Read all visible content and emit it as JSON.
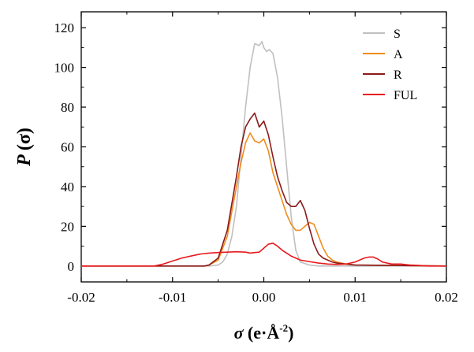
{
  "chart_data": {
    "type": "line",
    "xlabel_symbol": "σ",
    "xlabel_open": " (",
    "xlabel_unit": "e·Å",
    "xlabel_exp": "-2",
    "xlabel_close": ")",
    "ylabel_symbol": "P",
    "ylabel_arg": "(σ)",
    "xlim": [
      -0.02,
      0.02
    ],
    "ylim": [
      -8,
      128
    ],
    "xticks": [
      -0.02,
      -0.01,
      0.0,
      0.01,
      0.02
    ],
    "xtick_labels": [
      "-0.02",
      "-0.01",
      "0.00",
      "0.01",
      "0.02"
    ],
    "yticks": [
      0,
      20,
      40,
      60,
      80,
      100,
      120
    ],
    "ytick_labels": [
      "0",
      "20",
      "40",
      "60",
      "80",
      "100",
      "120"
    ],
    "grid": false,
    "legend_position": "top-right",
    "series": [
      {
        "name": "S",
        "color": "#c0c0c0",
        "x": [
          -0.02,
          -0.006,
          -0.005,
          -0.0045,
          -0.004,
          -0.0035,
          -0.003,
          -0.0025,
          -0.002,
          -0.0015,
          -0.001,
          -0.0005,
          -0.0002,
          0.0,
          0.0003,
          0.0006,
          0.001,
          0.0015,
          0.002,
          0.0025,
          0.003,
          0.0035,
          0.004,
          0.005,
          0.006,
          0.02
        ],
        "y": [
          0,
          0,
          0.5,
          2,
          6,
          15,
          30,
          55,
          80,
          100,
          112,
          111,
          113,
          110,
          108,
          109,
          107,
          95,
          75,
          50,
          25,
          8,
          2,
          0.5,
          0,
          0
        ]
      },
      {
        "name": "A",
        "color": "#f08c1c",
        "x": [
          -0.02,
          -0.0065,
          -0.006,
          -0.005,
          -0.004,
          -0.003,
          -0.0025,
          -0.002,
          -0.0015,
          -0.001,
          -0.0005,
          0.0,
          0.0005,
          0.001,
          0.0015,
          0.002,
          0.0025,
          0.003,
          0.0035,
          0.004,
          0.0045,
          0.005,
          0.0055,
          0.006,
          0.0065,
          0.007,
          0.0075,
          0.008,
          0.009,
          0.01,
          0.02
        ],
        "y": [
          0,
          0,
          0.5,
          3,
          15,
          40,
          52,
          62,
          67,
          63,
          62,
          64,
          58,
          47,
          40,
          33,
          26,
          21,
          18,
          18,
          20,
          22,
          21,
          15,
          9,
          5,
          3,
          2,
          1,
          0.5,
          0
        ]
      },
      {
        "name": "R",
        "color": "#8b1a1a",
        "x": [
          -0.02,
          -0.0065,
          -0.006,
          -0.005,
          -0.004,
          -0.003,
          -0.0025,
          -0.002,
          -0.0015,
          -0.001,
          -0.0005,
          0.0,
          0.0005,
          0.001,
          0.0015,
          0.002,
          0.0025,
          0.003,
          0.0035,
          0.004,
          0.0045,
          0.005,
          0.0055,
          0.006,
          0.0065,
          0.007,
          0.0075,
          0.008,
          0.009,
          0.01,
          0.02
        ],
        "y": [
          0,
          0,
          0.5,
          4,
          18,
          45,
          60,
          70,
          74,
          77,
          70,
          73,
          66,
          55,
          45,
          38,
          32,
          30,
          30,
          33,
          28,
          19,
          11,
          6,
          4,
          3,
          2,
          1.5,
          1,
          0.5,
          0
        ]
      },
      {
        "name": "FUL",
        "color": "#e8191e",
        "x": [
          -0.02,
          -0.012,
          -0.011,
          -0.01,
          -0.009,
          -0.008,
          -0.007,
          -0.006,
          -0.005,
          -0.004,
          -0.003,
          -0.002,
          -0.0015,
          -0.001,
          -0.0005,
          0.0,
          0.0005,
          0.001,
          0.0015,
          0.002,
          0.003,
          0.004,
          0.005,
          0.006,
          0.007,
          0.008,
          0.009,
          0.01,
          0.0105,
          0.011,
          0.0115,
          0.012,
          0.0125,
          0.013,
          0.014,
          0.015,
          0.016,
          0.017,
          0.018,
          0.02
        ],
        "y": [
          0,
          0,
          1,
          2.5,
          4,
          5,
          6,
          6.5,
          6.8,
          7,
          7.2,
          7,
          6.5,
          6.8,
          7,
          9,
          11,
          11.5,
          10,
          8,
          5,
          3,
          2.2,
          1.5,
          1,
          0.8,
          1,
          2,
          3,
          4,
          4.5,
          4.5,
          3.5,
          2,
          1,
          1,
          0.5,
          0.3,
          0,
          0
        ]
      }
    ]
  }
}
